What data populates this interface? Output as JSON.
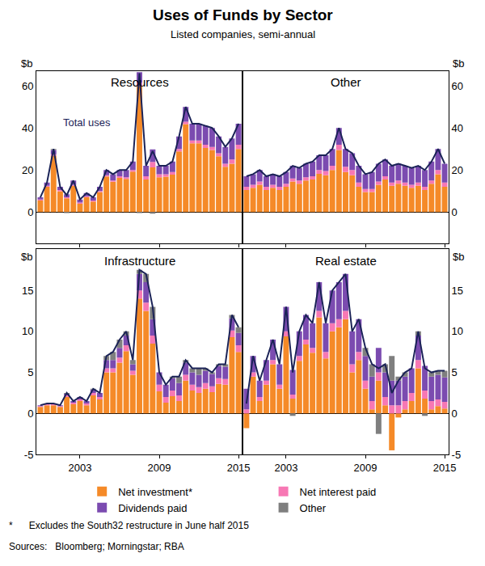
{
  "chart_data": {
    "type": "bar",
    "title": "Uses of Funds by Sector",
    "subtitle": "Listed companies, semi-annual",
    "y_label": "$b",
    "stacked": true,
    "grid": false,
    "legend": "bottom",
    "notes": [
      "*      Excludes the South32 restructure in June half 2015",
      "Sources:   Bloomberg; Morningstar; RBA"
    ],
    "categories": [
      null,
      null,
      null,
      null,
      null,
      null,
      "2003",
      null,
      null,
      null,
      null,
      null,
      null,
      null,
      null,
      null,
      null,
      null,
      "2009",
      null,
      null,
      null,
      null,
      null,
      null,
      null,
      null,
      null,
      null,
      null,
      "2015"
    ],
    "panels": [
      {
        "title": "Resources",
        "ylim": [
          -15,
          67
        ],
        "yticks": [
          0,
          20,
          40,
          60
        ],
        "series": [
          {
            "name": "Net investment*",
            "color": "#f58a28",
            "values": [
              5.5,
              12,
              26.7,
              9.9,
              6.5,
              12.4,
              4,
              7,
              5,
              9.5,
              16.9,
              14.4,
              16.3,
              15.8,
              19.2,
              60,
              15.5,
              21.3,
              16.5,
              16.8,
              17.8,
              28.8,
              41.8,
              32.7,
              32.7,
              30.5,
              29.5,
              26.5,
              21.5,
              23,
              30
            ]
          },
          {
            "name": "Net interest paid",
            "color": "#f778b4",
            "values": [
              0.5,
              0.5,
              0.8,
              0.6,
              0.5,
              0.6,
              0.5,
              0.5,
              0.5,
              0.5,
              0.6,
              0.6,
              0.7,
              0.7,
              0.8,
              1.5,
              1.5,
              2.5,
              1.5,
              1.2,
              1.2,
              1.2,
              1.2,
              1.3,
              1.3,
              1.5,
              1.5,
              1.5,
              1.5,
              2,
              2
            ]
          },
          {
            "name": "Dividends paid",
            "color": "#7b4bb0",
            "values": [
              1,
              1.5,
              2,
              1.5,
              1.5,
              2,
              1.5,
              1.5,
              1.5,
              2,
              2.5,
              3,
              3,
              3.5,
              4,
              5,
              5,
              6,
              4,
              4,
              5,
              6,
              7,
              8,
              8,
              9,
              9,
              8,
              8,
              10,
              10
            ]
          },
          {
            "name": "Other",
            "color": "#7f7f7f",
            "values": [
              0,
              0,
              0.5,
              0,
              -0.5,
              0,
              0,
              0,
              0,
              0,
              0,
              0,
              0,
              0,
              0,
              -0.5,
              0,
              -0.8,
              0,
              0,
              0,
              0,
              0,
              0,
              0,
              0,
              0,
              0,
              0,
              0,
              0
            ]
          },
          {
            "name": "Total uses",
            "type": "line",
            "color": "#1b2357",
            "values": [
              7,
              14,
              30,
              12,
              8,
              15,
              6,
              9,
              7,
              12,
              20,
              18,
              20,
              20,
              24,
              66,
              22,
              29,
              22,
              22,
              24,
              36,
              50,
              42,
              42,
              41,
              40,
              36,
              31,
              35,
              42
            ]
          }
        ]
      },
      {
        "title": "Other",
        "ylim": [
          -15,
          67
        ],
        "yticks": [
          0,
          20,
          40,
          60
        ],
        "series": [
          {
            "name": "Net investment*",
            "color": "#f58a28",
            "values": [
              10.5,
              11.5,
              13,
              10.5,
              11.5,
              10.5,
              12,
              14.5,
              13.5,
              15,
              15.5,
              18.2,
              17.5,
              20,
              29.5,
              19,
              17.5,
              12,
              9.5,
              9.5,
              13,
              15.5,
              12.5,
              13.5,
              12.5,
              11.5,
              12.5,
              10.5,
              13.5,
              18,
              12
            ]
          },
          {
            "name": "Net interest paid",
            "color": "#f778b4",
            "values": [
              1.5,
              1.5,
              1.5,
              1.5,
              1.5,
              1.5,
              1.5,
              1.5,
              1.5,
              1.5,
              1.5,
              1.8,
              2,
              2,
              2.5,
              2.5,
              2.5,
              2,
              1.5,
              1.5,
              1.5,
              1.5,
              1.5,
              1.5,
              1.5,
              1.5,
              1.5,
              1.5,
              1.5,
              2,
              2
            ]
          },
          {
            "name": "Dividends paid",
            "color": "#7b4bb0",
            "values": [
              5,
              5,
              5.5,
              5,
              5,
              5,
              5.5,
              6,
              6,
              6.5,
              7,
              7,
              7.5,
              8,
              8,
              8.5,
              8,
              8,
              7,
              8,
              8.5,
              8,
              8,
              8,
              8,
              8,
              8,
              8,
              9,
              10,
              9
            ]
          },
          {
            "name": "Other",
            "color": "#7f7f7f",
            "values": [
              0,
              0,
              0,
              0,
              0,
              0,
              0,
              0,
              0,
              0,
              0,
              0,
              0,
              0,
              0,
              0,
              0,
              0,
              0,
              0,
              0,
              0,
              0,
              0,
              0,
              0,
              0,
              0,
              0,
              0,
              0
            ]
          },
          {
            "name": "Total uses",
            "type": "line",
            "color": "#1b2357",
            "values": [
              17,
              18,
              20,
              17,
              18,
              17,
              19,
              22,
              21,
              23,
              24,
              27,
              27,
              30,
              40,
              30,
              28,
              22,
              18,
              19,
              23,
              25,
              22,
              23,
              22,
              21,
              22,
              20,
              24,
              30,
              23
            ]
          }
        ]
      },
      {
        "title": "Infrastructure",
        "ylim": [
          -5,
          20
        ],
        "yticks": [
          -5,
          0,
          5,
          10,
          15
        ],
        "series": [
          {
            "name": "Net investment*",
            "color": "#f58a28",
            "values": [
              0.8,
              1,
              1,
              0.8,
              2,
              1.1,
              1.5,
              1,
              2.2,
              1.7,
              5,
              5,
              6.2,
              7.6,
              4.7,
              14,
              12.5,
              8.5,
              2.7,
              1.3,
              2.1,
              1.5,
              4,
              2.8,
              2.5,
              3,
              2.6,
              3.6,
              3.5,
              9.3,
              7.5
            ]
          },
          {
            "name": "Net interest paid",
            "color": "#f778b4",
            "values": [
              0.1,
              0.1,
              0.1,
              0.1,
              0.2,
              0.2,
              0.2,
              0.2,
              0.3,
              0.3,
              0.5,
              0.5,
              0.6,
              0.7,
              0.5,
              1,
              1,
              1,
              0.8,
              0.7,
              0.7,
              0.7,
              0.7,
              0.7,
              0.7,
              0.7,
              0.7,
              0.7,
              0.7,
              0.8,
              0.8
            ]
          },
          {
            "name": "Dividends paid",
            "color": "#7b4bb0",
            "values": [
              0.1,
              0.1,
              0.1,
              0.1,
              0.2,
              0.2,
              0.3,
              0.3,
              0.4,
              0.5,
              1,
              1,
              1.2,
              1.2,
              0.8,
              2,
              2.5,
              2,
              1.5,
              1.5,
              1.5,
              1.5,
              1.5,
              1.5,
              1.5,
              1.5,
              1.5,
              1.5,
              1.5,
              1.5,
              1.5
            ]
          },
          {
            "name": "Other",
            "color": "#7f7f7f",
            "values": [
              0,
              0,
              0,
              0,
              0.1,
              0,
              0,
              0,
              0.1,
              0,
              0.5,
              1,
              1,
              0.5,
              0.5,
              0.5,
              1,
              1.5,
              0,
              0,
              0.2,
              0.8,
              0.3,
              0.5,
              0.8,
              0.3,
              0.2,
              0.2,
              0.3,
              0.4,
              0.7
            ]
          },
          {
            "name": "Total uses",
            "type": "line",
            "color": "#1b2357",
            "values": [
              1,
              1.2,
              1.2,
              1,
              2.5,
              1.5,
              2,
              1.5,
              3,
              2.5,
              7,
              7.5,
              9,
              10,
              6.5,
              17.5,
              17,
              13,
              5,
              3.5,
              4.5,
              4.5,
              6.5,
              5.5,
              5.5,
              5.5,
              5,
              6,
              6,
              12,
              10.5
            ]
          }
        ]
      },
      {
        "title": "Real estate",
        "ylim": [
          -5,
          20
        ],
        "yticks": [
          -5,
          0,
          5,
          10,
          15
        ],
        "series": [
          {
            "name": "Net investment*",
            "color": "#f58a28",
            "values": [
              -1.8,
              4.5,
              1.5,
              3.5,
              6,
              3,
              9.4,
              1.8,
              6.4,
              8.4,
              7.4,
              11.7,
              6.7,
              10,
              10.5,
              11.5,
              5,
              6.5,
              3,
              0.5,
              4,
              1,
              -4.5,
              -0.5,
              0.5,
              1.5,
              5.5,
              1.8,
              0.5,
              0.9,
              0.6
            ]
          },
          {
            "name": "Net interest paid",
            "color": "#f778b4",
            "values": [
              0.5,
              0.5,
              0.5,
              0.5,
              0.5,
              0.5,
              0.6,
              0.5,
              0.6,
              0.6,
              0.6,
              0.8,
              0.8,
              1,
              1,
              1,
              1,
              1,
              1,
              1,
              1,
              1,
              1,
              1,
              1,
              1,
              1,
              1,
              1,
              0.8,
              0.8
            ]
          },
          {
            "name": "Dividends paid",
            "color": "#7b4bb0",
            "values": [
              2.5,
              2,
              2,
              2.5,
              2.5,
              2.5,
              3,
              3,
              3,
              3,
              3,
              3.5,
              3.5,
              4,
              4.5,
              4.5,
              4,
              4,
              3,
              3,
              3,
              3,
              3,
              3,
              3,
              3,
              3,
              3,
              3,
              3,
              3
            ]
          },
          {
            "name": "Other",
            "color": "#7f7f7f",
            "values": [
              0,
              0,
              0,
              0,
              0,
              0,
              0,
              -0.3,
              0,
              0,
              0,
              0,
              0,
              0,
              0,
              0,
              0,
              0,
              1,
              1.5,
              -2.5,
              1,
              3,
              0.5,
              0.5,
              0,
              0.5,
              -0.3,
              0.5,
              0.5,
              0.8
            ]
          },
          {
            "name": "Total uses",
            "type": "line",
            "color": "#1b2357",
            "values": [
              1.2,
              7,
              4,
              6.5,
              9,
              6,
              13,
              5,
              10,
              12,
              11,
              16,
              11,
              15,
              16,
              17,
              10,
              11.5,
              8,
              6,
              5.5,
              6,
              2.5,
              4,
              5,
              5.5,
              10,
              5.5,
              5,
              5.2,
              5.2
            ]
          }
        ]
      }
    ]
  }
}
